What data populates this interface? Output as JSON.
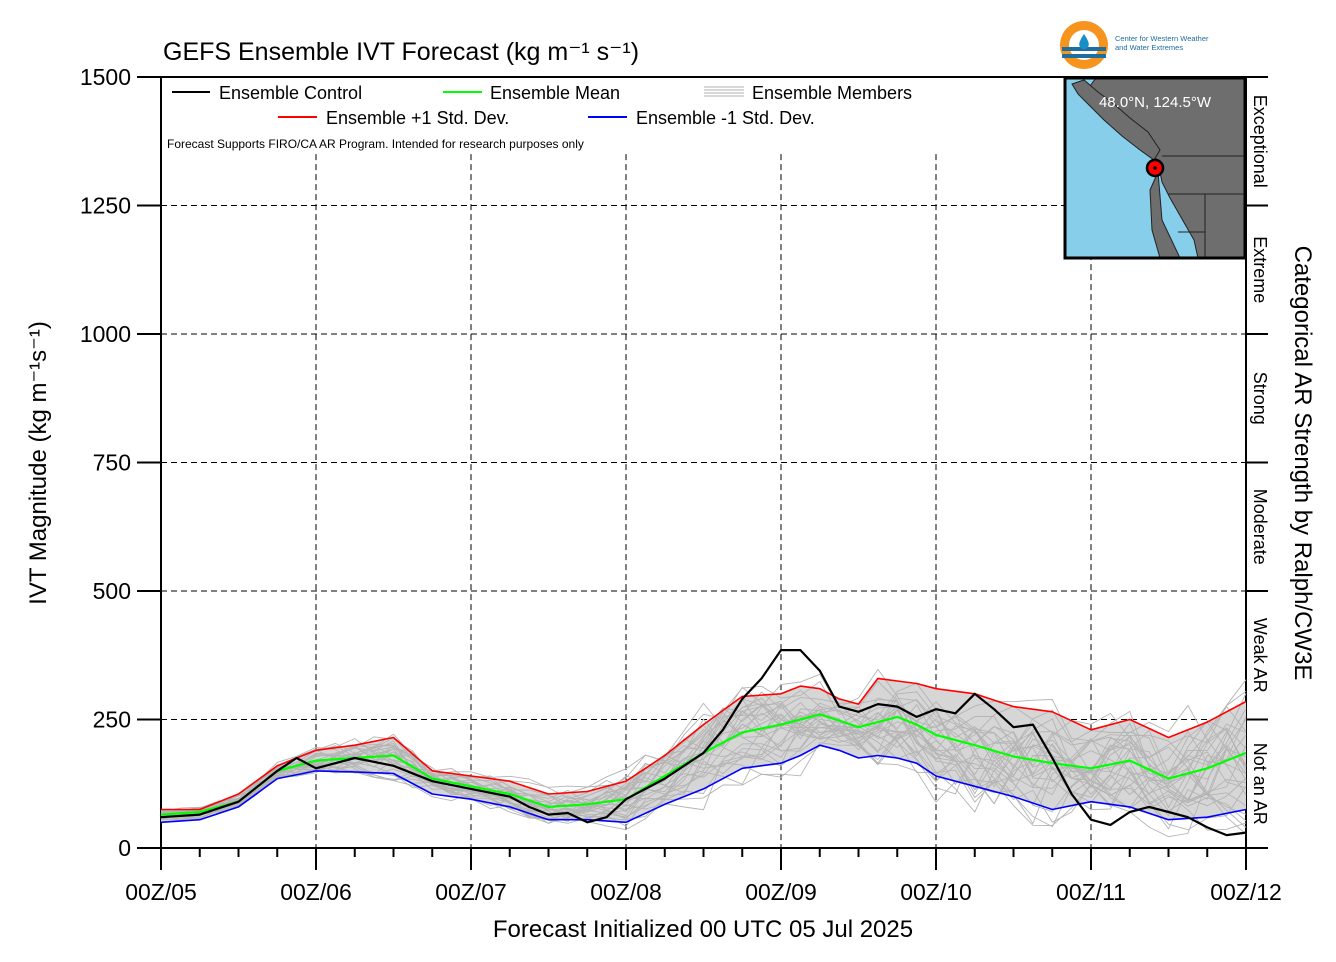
{
  "title": "GEFS Ensemble IVT Forecast (kg m⁻¹ s⁻¹)",
  "logo": {
    "org_line1": "Center for Western Weather",
    "org_line2": "and Water Extremes"
  },
  "inset_map": {
    "location_label": "48.0°N, 124.5°W",
    "colors": {
      "ocean": "#87ceeb",
      "land": "#6e6e6e",
      "marker": "#ff0000"
    }
  },
  "legend": {
    "control": "Ensemble Control",
    "mean": "Ensemble Mean",
    "members": "Ensemble Members",
    "plus_std": "Ensemble +1 Std. Dev.",
    "minus_std": "Ensemble -1 Std. Dev.",
    "note": "Forecast Supports FIRO/CA AR Program. Intended for research purposes only"
  },
  "chart_data": {
    "type": "line",
    "title": "GEFS Ensemble IVT Forecast (kg m⁻¹ s⁻¹)",
    "xlabel": "Forecast Initialized 00 UTC 05 Jul 2025",
    "ylabel": "IVT Magnitude (kg m⁻¹s⁻¹)",
    "right_axis_label": "Categorical AR Strength by Ralph/CW3E",
    "xlim": [
      0,
      168
    ],
    "ylim": [
      0,
      1500
    ],
    "x_unit": "forecast hours from 00Z/05",
    "x_tick_labels": [
      "00Z/05",
      "00Z/06",
      "00Z/07",
      "00Z/08",
      "00Z/09",
      "00Z/10",
      "00Z/11",
      "00Z/12"
    ],
    "y_ticks": [
      0,
      250,
      500,
      750,
      1000,
      1250,
      1500
    ],
    "grid": true,
    "legend_position": "top-left",
    "categories": [
      {
        "label": "Not an AR",
        "from": 0,
        "to": 250
      },
      {
        "label": "Weak AR",
        "from": 250,
        "to": 500
      },
      {
        "label": "Moderate",
        "from": 500,
        "to": 750
      },
      {
        "label": "Strong",
        "from": 750,
        "to": 1000
      },
      {
        "label": "Extreme",
        "from": 1000,
        "to": 1250
      },
      {
        "label": "Exceptional",
        "from": 1250,
        "to": 1500
      }
    ],
    "series": [
      {
        "name": "Ensemble Control",
        "color": "#000000",
        "x": [
          0,
          6,
          12,
          18,
          21,
          24,
          30,
          36,
          42,
          48,
          54,
          57,
          60,
          63,
          66,
          69,
          72,
          78,
          84,
          87,
          90,
          93,
          96,
          99,
          102,
          105,
          108,
          111,
          114,
          117,
          120,
          123,
          126,
          129,
          132,
          135,
          138,
          141,
          144,
          147,
          150,
          153,
          156,
          159,
          162,
          165,
          168
        ],
        "y": [
          60,
          65,
          90,
          150,
          175,
          155,
          175,
          160,
          130,
          115,
          100,
          80,
          65,
          68,
          50,
          60,
          95,
          135,
          185,
          230,
          290,
          330,
          385,
          385,
          345,
          275,
          265,
          280,
          275,
          255,
          270,
          262,
          300,
          270,
          235,
          240,
          175,
          105,
          55,
          45,
          70,
          80,
          70,
          60,
          40,
          25,
          30
        ]
      },
      {
        "name": "Ensemble Mean",
        "color": "#00ff00",
        "x": [
          0,
          6,
          12,
          18,
          24,
          30,
          36,
          42,
          48,
          54,
          60,
          66,
          72,
          78,
          84,
          90,
          96,
          99,
          102,
          105,
          108,
          111,
          114,
          117,
          120,
          126,
          132,
          138,
          144,
          150,
          156,
          162,
          168
        ],
        "y": [
          65,
          70,
          90,
          150,
          170,
          175,
          180,
          135,
          120,
          105,
          80,
          85,
          95,
          140,
          185,
          225,
          240,
          250,
          260,
          248,
          235,
          245,
          255,
          240,
          220,
          200,
          178,
          165,
          155,
          170,
          135,
          155,
          185
        ]
      },
      {
        "name": "Ensemble +1 Std. Dev.",
        "color": "#ff0000",
        "x": [
          0,
          6,
          12,
          18,
          24,
          30,
          36,
          42,
          48,
          54,
          60,
          66,
          72,
          78,
          84,
          90,
          96,
          99,
          102,
          105,
          108,
          111,
          114,
          117,
          120,
          126,
          132,
          138,
          144,
          150,
          156,
          162,
          168
        ],
        "y": [
          75,
          75,
          105,
          160,
          190,
          200,
          215,
          150,
          140,
          130,
          105,
          110,
          130,
          180,
          240,
          295,
          300,
          315,
          310,
          290,
          280,
          330,
          325,
          320,
          310,
          300,
          275,
          265,
          230,
          250,
          215,
          245,
          285
        ]
      },
      {
        "name": "Ensemble -1 Std. Dev.",
        "color": "#0000ff",
        "x": [
          0,
          6,
          12,
          18,
          24,
          30,
          36,
          42,
          48,
          54,
          60,
          66,
          72,
          78,
          84,
          90,
          96,
          99,
          102,
          105,
          108,
          111,
          114,
          117,
          120,
          126,
          132,
          138,
          144,
          150,
          156,
          162,
          168
        ],
        "y": [
          50,
          55,
          80,
          135,
          150,
          148,
          145,
          105,
          95,
          80,
          55,
          55,
          50,
          85,
          115,
          155,
          165,
          180,
          200,
          190,
          175,
          180,
          175,
          165,
          140,
          120,
          100,
          75,
          90,
          80,
          55,
          60,
          75
        ]
      }
    ]
  }
}
